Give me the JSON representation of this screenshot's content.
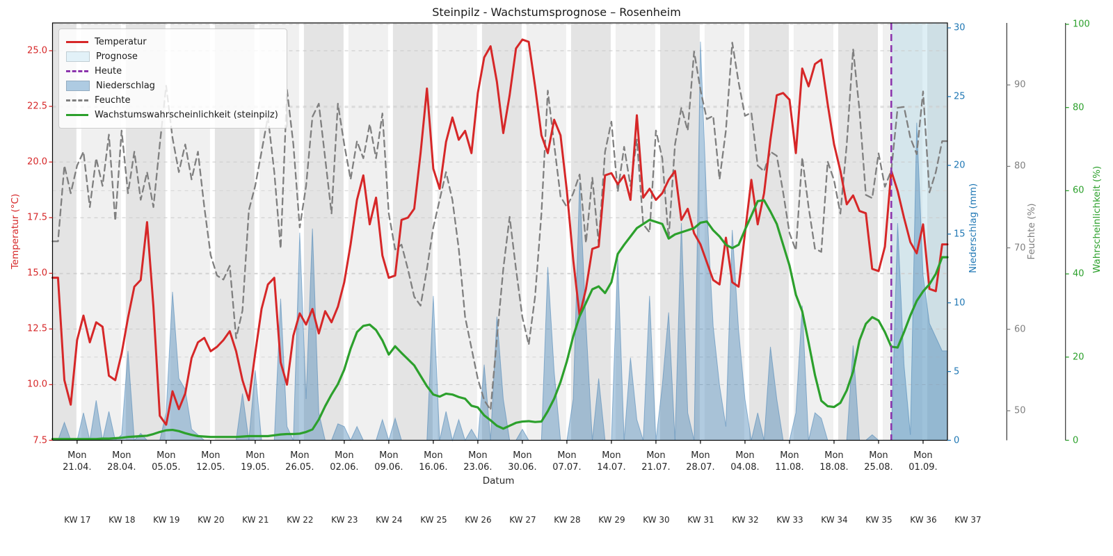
{
  "chart_data": {
    "type": "line",
    "title": "Steinpilz - Wachstumsprognose – Rosenheim",
    "xlabel": "Datum",
    "x_day_label": "Mon",
    "x_tick_dates": [
      "21.04.",
      "28.04.",
      "05.05.",
      "12.05.",
      "19.05.",
      "26.05.",
      "02.06.",
      "09.06.",
      "16.06.",
      "23.06.",
      "30.06.",
      "07.07.",
      "14.07.",
      "21.07.",
      "28.07.",
      "04.08.",
      "11.08.",
      "18.08.",
      "25.08.",
      "01.09."
    ],
    "kw_labels": [
      "KW 17",
      "KW 18",
      "KW 19",
      "KW 20",
      "KW 21",
      "KW 22",
      "KW 23",
      "KW 24",
      "KW 25",
      "KW 26",
      "KW 27",
      "KW 28",
      "KW 29",
      "KW 30",
      "KW 31",
      "KW 32",
      "KW 33",
      "KW 34",
      "KW 35",
      "KW 36",
      "KW 37"
    ],
    "legend": [
      {
        "label": "Temperatur",
        "swatch": "line",
        "color": "#d62728"
      },
      {
        "label": "Prognose",
        "swatch": "patch",
        "color": "#e2f1f8"
      },
      {
        "label": "Heute",
        "swatch": "dashed",
        "color": "#8c35ad"
      },
      {
        "label": "Niederschlag",
        "swatch": "patch",
        "color": "#aecbe2"
      },
      {
        "label": "Feuchte",
        "swatch": "dashed",
        "color": "#7f7f7f"
      },
      {
        "label": "Wachstumswahrscheinlichkeit (steinpilz)",
        "swatch": "line",
        "color": "#2ca02c"
      }
    ],
    "axes": {
      "temperature": {
        "label": "Temperatur (°C)",
        "color": "#d62728",
        "ticks": [
          "7.5",
          "10.0",
          "12.5",
          "15.0",
          "17.5",
          "20.0",
          "22.5",
          "25.0"
        ],
        "min": 7.5,
        "max": 26.3
      },
      "precipitation": {
        "label": "Niederschlag (mm)",
        "color": "#1f77b4",
        "ticks": [
          0,
          5,
          10,
          15,
          20,
          25,
          30
        ],
        "min": 0,
        "max": 30
      },
      "humidity": {
        "label": "Feuchte (%)",
        "color": "#7f7f7f",
        "ticks": [
          50,
          60,
          70,
          80,
          90
        ],
        "min": 46.4,
        "max": 97.6
      },
      "probability": {
        "label": "Wahrscheinlichkeit (%)",
        "color": "#2ca02c",
        "ticks": [
          0,
          20,
          40,
          60,
          80,
          100
        ],
        "min": 0,
        "max": 100
      }
    },
    "today_line": {
      "label": "Heute",
      "day_offset": 131,
      "date": "27.08."
    },
    "forecast_region": {
      "label": "Prognose",
      "start_day_offset": 131
    },
    "series_start_date": "18.04.",
    "series": {
      "temperature": [
        14.8,
        10.2,
        9.1,
        12.0,
        13.1,
        11.9,
        12.8,
        12.6,
        10.4,
        10.2,
        11.4,
        13.0,
        14.4,
        14.7,
        17.3,
        13.5,
        8.6,
        8.2,
        9.7,
        8.9,
        9.6,
        11.2,
        11.9,
        12.1,
        11.5,
        11.7,
        12.0,
        12.4,
        11.5,
        10.2,
        9.3,
        11.4,
        13.4,
        14.5,
        14.8,
        11.0,
        10.0,
        12.2,
        13.2,
        12.7,
        13.4,
        12.3,
        13.3,
        12.8,
        13.5,
        14.6,
        16.3,
        18.3,
        19.4,
        17.2,
        18.4,
        15.8,
        14.8,
        14.9,
        17.4,
        17.5,
        17.9,
        20.4,
        23.3,
        19.7,
        18.8,
        20.9,
        22.0,
        21.0,
        21.4,
        20.4,
        23.1,
        24.7,
        25.2,
        23.6,
        21.3,
        23.0,
        25.1,
        25.5,
        25.4,
        23.4,
        21.2,
        20.4,
        21.9,
        21.2,
        18.7,
        15.6,
        13.1,
        14.3,
        16.1,
        16.2,
        19.4,
        19.5,
        19.0,
        19.4,
        18.3,
        22.1,
        18.4,
        18.8,
        18.3,
        18.6,
        19.2,
        19.6,
        17.4,
        17.9,
        16.8,
        16.3,
        15.5,
        14.7,
        14.5,
        16.6,
        14.6,
        14.4,
        16.8,
        19.2,
        17.2,
        18.6,
        21.0,
        23.0,
        23.1,
        22.8,
        20.4,
        24.2,
        23.4,
        24.4,
        24.6,
        22.6,
        20.8,
        19.6,
        18.1,
        18.5,
        17.8,
        17.7,
        15.2,
        15.1,
        16.2,
        19.6,
        18.7,
        17.5,
        16.4,
        15.9,
        17.2,
        14.3,
        14.2,
        16.3
      ],
      "humidity": [
        70.8,
        80.1,
        76.7,
        80.1,
        81.8,
        75.0,
        81.0,
        77.6,
        83.9,
        73.3,
        84.4,
        76.7,
        81.8,
        75.9,
        79.3,
        75.0,
        82.7,
        89.9,
        83.5,
        79.3,
        82.7,
        78.4,
        81.8,
        75.0,
        69.1,
        66.6,
        66.1,
        67.8,
        58.9,
        62.3,
        74.6,
        77.6,
        81.8,
        86.1,
        79.3,
        69.9,
        89.4,
        82.7,
        72.5,
        77.6,
        86.1,
        87.7,
        81.0,
        74.2,
        87.7,
        82.7,
        78.4,
        83.1,
        81.0,
        85.2,
        81.0,
        86.5,
        74.2,
        69.8,
        70.4,
        67.4,
        64.0,
        62.9,
        67.4,
        72.5,
        75.9,
        79.3,
        75.9,
        69.9,
        61.5,
        57.7,
        53.9,
        51.3,
        50.1,
        58.9,
        67.4,
        73.8,
        67.4,
        61.5,
        58.1,
        64.0,
        74.2,
        89.3,
        82.7,
        76.3,
        75.0,
        76.7,
        79.0,
        70.6,
        78.6,
        70.5,
        81.8,
        85.5,
        76.9,
        82.4,
        77.6,
        83.3,
        72.9,
        71.9,
        84.4,
        81.0,
        71.1,
        82.7,
        87.2,
        84.4,
        94.1,
        89.4,
        85.8,
        86.2,
        78.4,
        84.4,
        95.2,
        90.3,
        86.2,
        86.6,
        80.1,
        79.4,
        81.8,
        81.3,
        76.8,
        71.8,
        69.7,
        81.1,
        75.0,
        69.9,
        69.5,
        80.6,
        78.3,
        74.2,
        82.7,
        94.4,
        86.9,
        76.5,
        76.1,
        81.6,
        77.5,
        79.5,
        87.2,
        87.3,
        83.5,
        81.5,
        89.2,
        76.8,
        79.3,
        83.1
      ],
      "probability": [
        0.3,
        0.3,
        0.3,
        0.3,
        0.3,
        0.3,
        0.3,
        0.4,
        0.4,
        0.5,
        0.6,
        0.8,
        0.9,
        1.0,
        1.1,
        1.5,
        2.0,
        2.4,
        2.5,
        2.2,
        1.7,
        1.3,
        1.0,
        0.9,
        0.8,
        0.8,
        0.8,
        0.8,
        0.8,
        0.9,
        1.0,
        1.0,
        1.0,
        1.0,
        1.2,
        1.4,
        1.5,
        1.5,
        1.6,
        2.0,
        2.6,
        5.0,
        8.2,
        11.0,
        13.5,
        17.0,
        22.0,
        26.0,
        27.5,
        27.8,
        26.5,
        24.0,
        20.6,
        22.6,
        21.0,
        19.5,
        18.0,
        15.5,
        13.0,
        11.0,
        10.5,
        11.2,
        11.0,
        10.4,
        10.0,
        8.3,
        7.9,
        6.0,
        4.8,
        3.5,
        2.8,
        3.5,
        4.2,
        4.5,
        4.6,
        4.4,
        4.5,
        7.0,
        10.0,
        14.0,
        19.0,
        25.0,
        29.8,
        33.0,
        36.3,
        37.0,
        35.4,
        38.0,
        44.8,
        47.0,
        49.0,
        51.0,
        52.0,
        53.0,
        52.5,
        52.0,
        48.5,
        49.5,
        50.0,
        50.5,
        51.0,
        52.3,
        52.6,
        50.5,
        49.0,
        47.0,
        46.2,
        47.0,
        50.6,
        54.0,
        57.5,
        57.7,
        55.0,
        52.0,
        47.0,
        42.0,
        35.0,
        31.0,
        23.5,
        15.7,
        9.5,
        8.2,
        8.0,
        9.0,
        12.0,
        16.5,
        24.0,
        28.0,
        29.6,
        28.8,
        26.0,
        22.5,
        22.3,
        26.0,
        30.0,
        33.5,
        35.8,
        37.5,
        40.0,
        44.0
      ],
      "precipitation": [
        0,
        1.3,
        0,
        0,
        2.0,
        0,
        2.9,
        0,
        2.1,
        0,
        0.4,
        6.5,
        0,
        0.5,
        0,
        0,
        0,
        2.0,
        10.8,
        4.5,
        3.7,
        0.8,
        0.4,
        0,
        0,
        0,
        0,
        0,
        0,
        3.4,
        0,
        5.1,
        0,
        0,
        0,
        10.3,
        1.0,
        0,
        15.1,
        3.0,
        15.4,
        2.0,
        0,
        0,
        1.2,
        1.0,
        0,
        1.0,
        0,
        0,
        0,
        1.5,
        0,
        1.6,
        0,
        0,
        0,
        0,
        0,
        10.5,
        0,
        2.1,
        0,
        1.5,
        0,
        0.8,
        0,
        5.5,
        0,
        9.0,
        3.0,
        0,
        0,
        0.8,
        0,
        0,
        0,
        12.6,
        5.0,
        0,
        0,
        3.0,
        18.8,
        8.5,
        0,
        4.5,
        0,
        0,
        13.2,
        0,
        6.0,
        1.5,
        0,
        10.5,
        0,
        4.0,
        9.3,
        0,
        15.8,
        2.0,
        0,
        29.0,
        17.0,
        8.3,
        4.0,
        1.0,
        15.3,
        8.0,
        3.0,
        0,
        2.0,
        0,
        6.8,
        3.0,
        0,
        0,
        2.0,
        9.8,
        0,
        2.0,
        1.6,
        0,
        0,
        0,
        0,
        6.9,
        0,
        0,
        0.4,
        0,
        0,
        0,
        15.8,
        5.5,
        0.4,
        23.1,
        12.0,
        8.5,
        7.5,
        6.5
      ]
    },
    "layout_hints": {
      "grid": "dashed-horizontal",
      "week_bands": true,
      "legend_position": "upper-left"
    }
  }
}
